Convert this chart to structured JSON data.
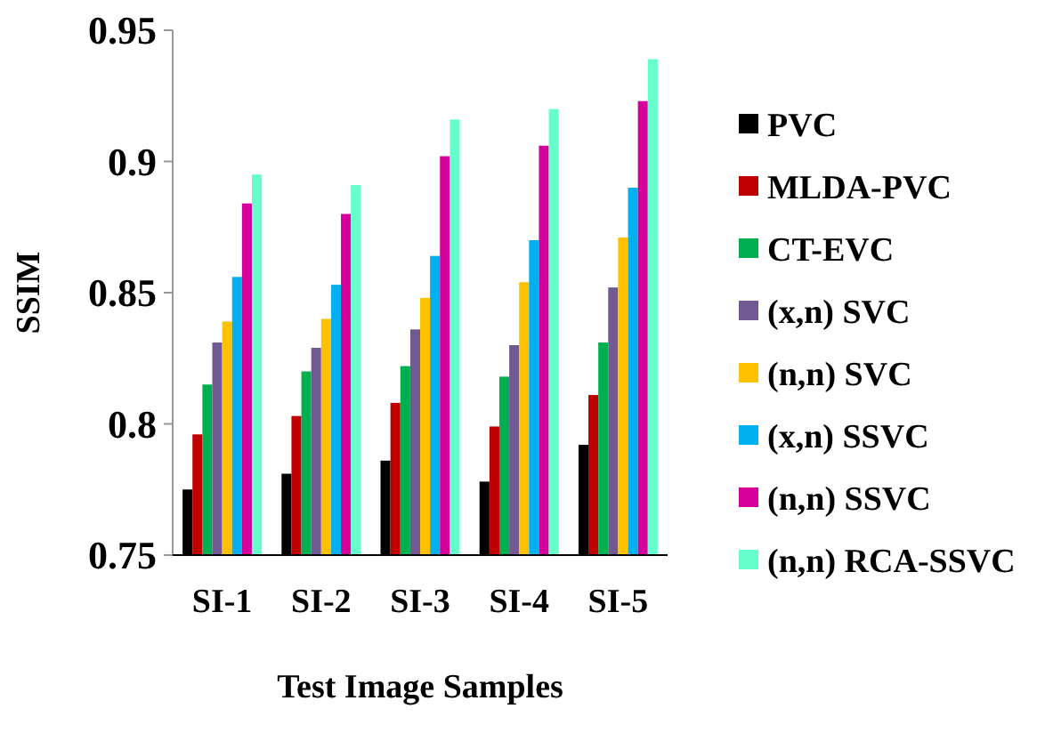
{
  "chart_data": {
    "type": "bar",
    "xlabel": "Test Image Samples",
    "ylabel": "SSIM",
    "categories": [
      "SI-1",
      "SI-2",
      "SI-3",
      "SI-4",
      "SI-5"
    ],
    "ylim": [
      0.75,
      0.95
    ],
    "yticks": [
      0.75,
      0.8,
      0.85,
      0.9,
      0.95
    ],
    "legend": "right",
    "series": [
      {
        "name": "PVC",
        "color": "#000000",
        "values": [
          0.775,
          0.781,
          0.786,
          0.778,
          0.792
        ]
      },
      {
        "name": "MLDA-PVC",
        "color": "#c00000",
        "values": [
          0.796,
          0.803,
          0.808,
          0.799,
          0.811
        ]
      },
      {
        "name": "CT-EVC",
        "color": "#00b050",
        "values": [
          0.815,
          0.82,
          0.822,
          0.818,
          0.831
        ]
      },
      {
        "name": "(x,n) SVC",
        "color": "#715a93",
        "values": [
          0.831,
          0.829,
          0.836,
          0.83,
          0.852
        ]
      },
      {
        "name": "(n,n) SVC",
        "color": "#ffc000",
        "values": [
          0.839,
          0.84,
          0.848,
          0.854,
          0.871
        ]
      },
      {
        "name": "(x,n) SSVC",
        "color": "#00b0f0",
        "values": [
          0.856,
          0.853,
          0.864,
          0.87,
          0.89
        ]
      },
      {
        "name": "(n,n) SSVC",
        "color": "#d5009b",
        "values": [
          0.884,
          0.88,
          0.902,
          0.906,
          0.923
        ]
      },
      {
        "name": "(n,n) RCA-SSVC",
        "color": "#66ffcc",
        "values": [
          0.895,
          0.891,
          0.916,
          0.92,
          0.939
        ]
      }
    ]
  }
}
